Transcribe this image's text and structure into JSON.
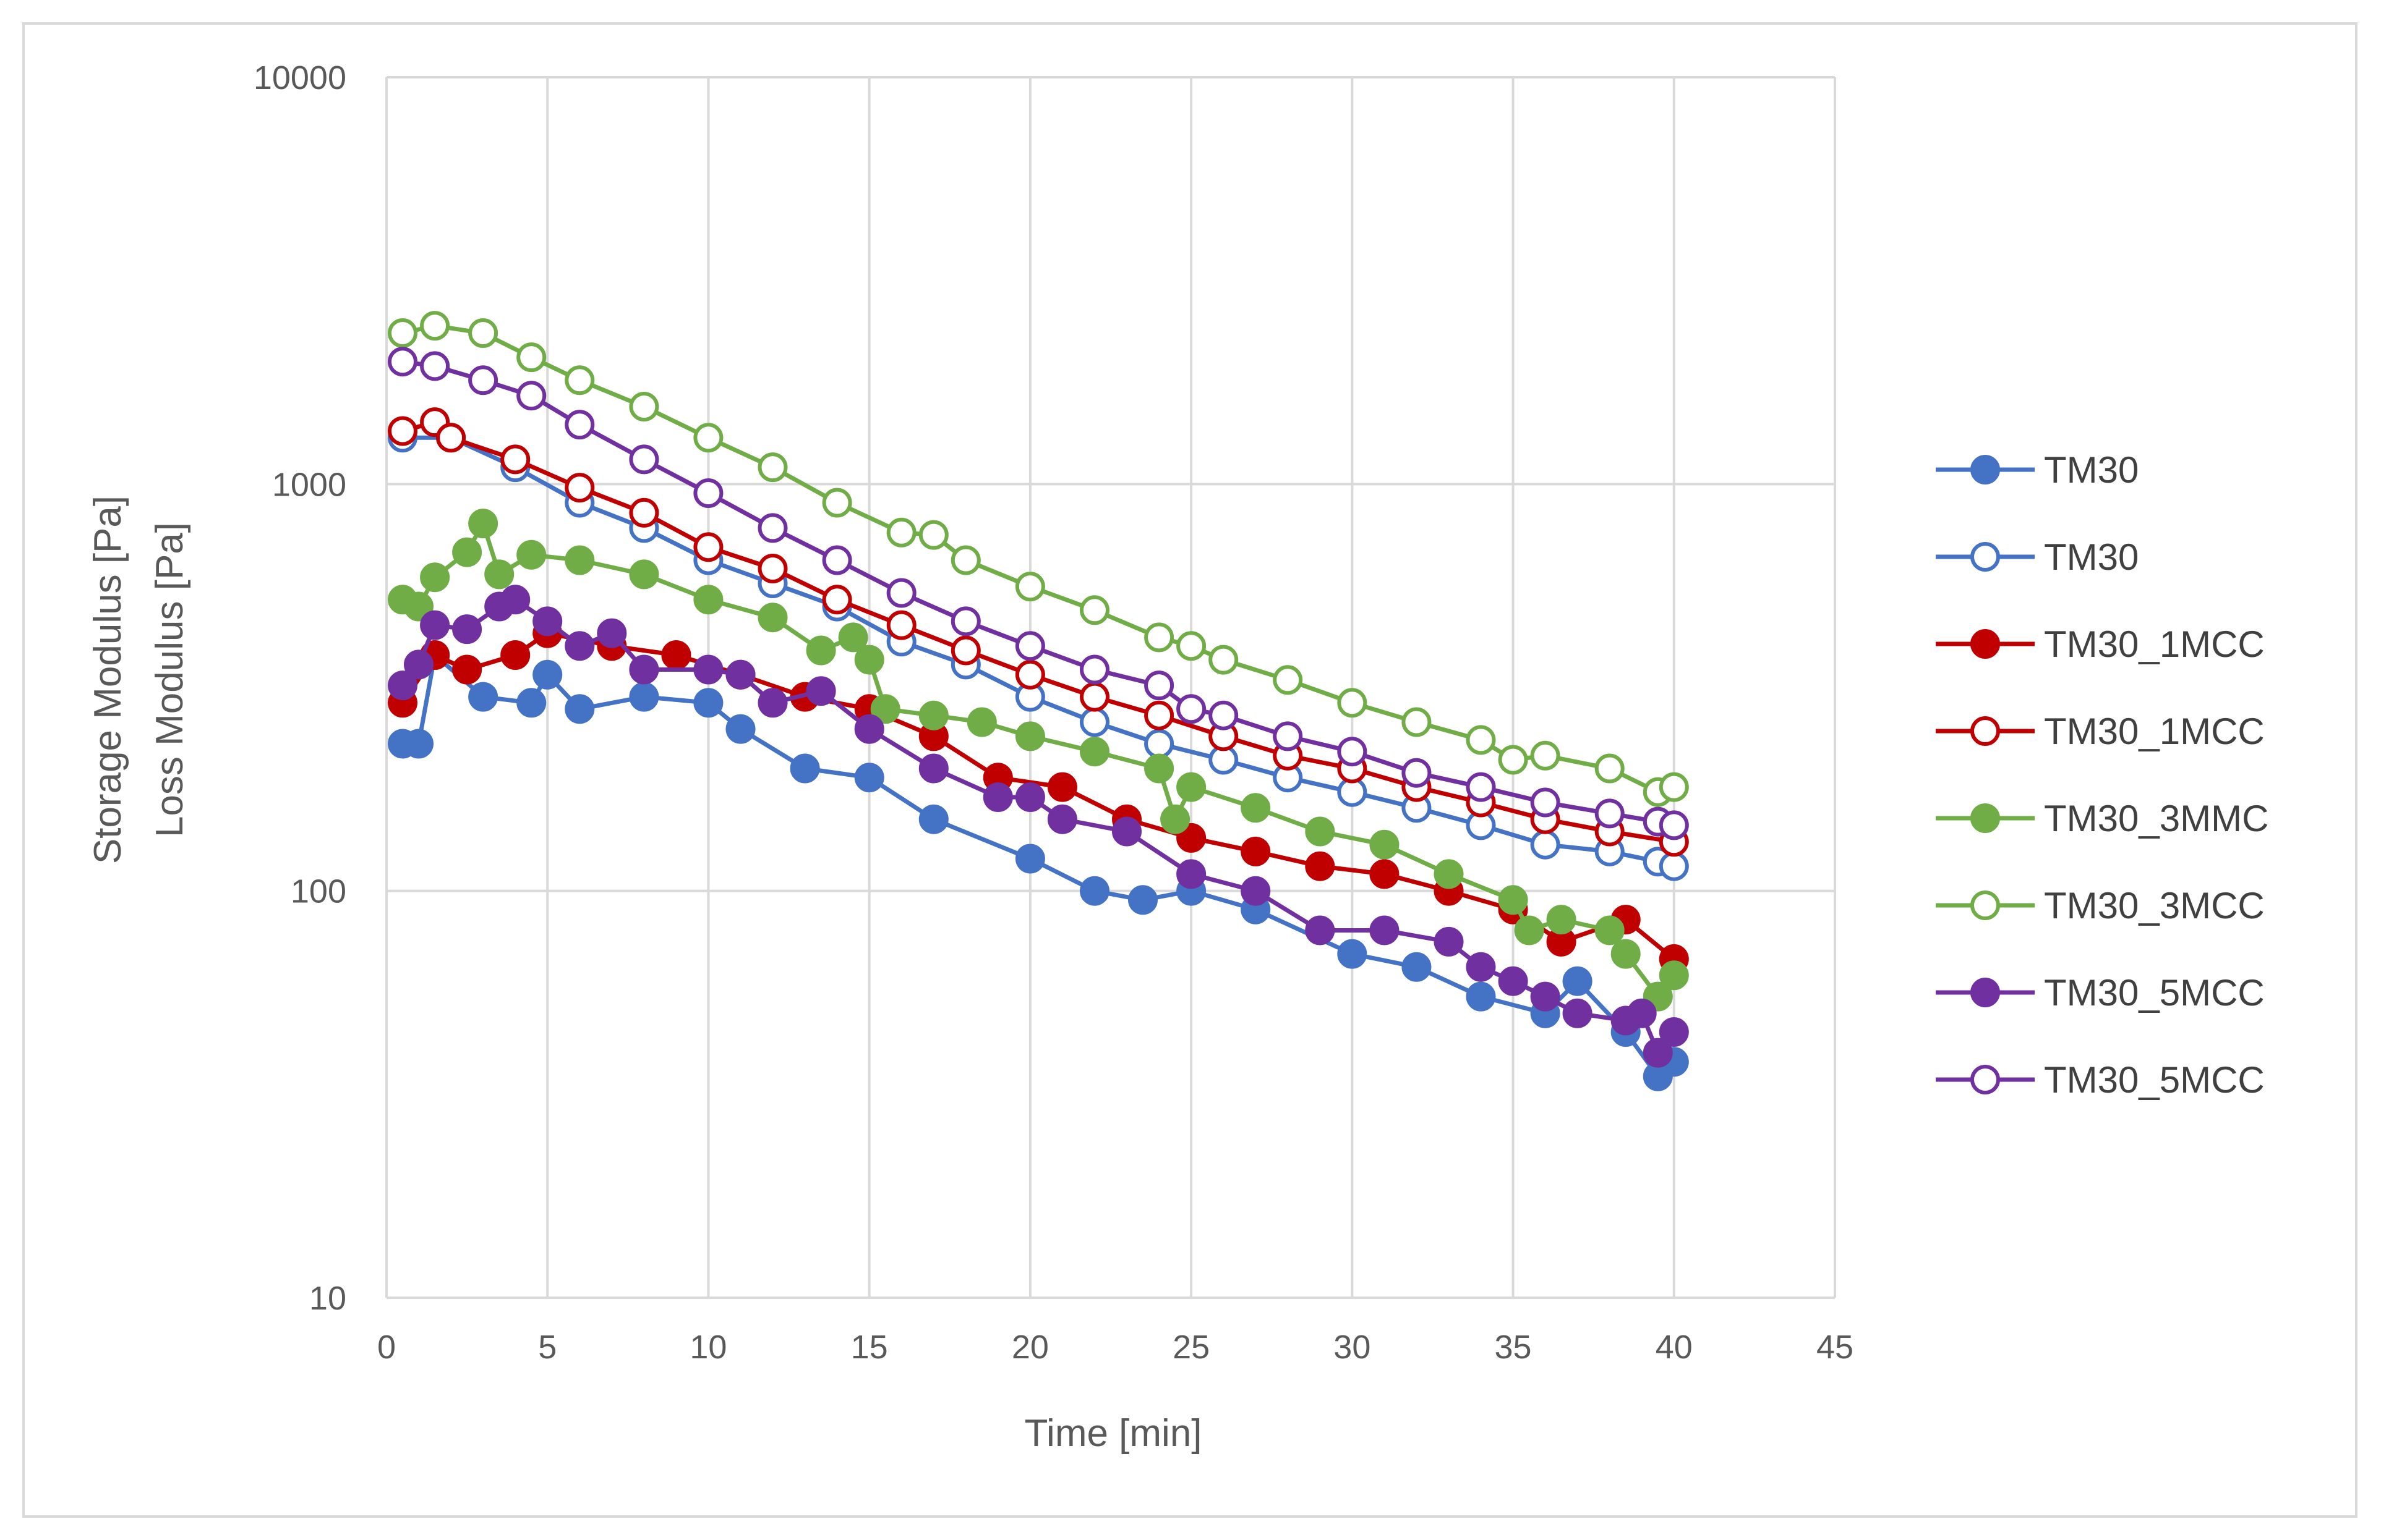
{
  "chart_data": {
    "type": "scatter",
    "title": "",
    "xlabel": "Time [min]",
    "ylabel": [
      "Storage Modulus [Pa]",
      "Loss Modulus [Pa]"
    ],
    "xlim": [
      0,
      45
    ],
    "ylim": [
      10,
      10000
    ],
    "yscale": "log",
    "grid": true,
    "legend_position": "right",
    "xticks": [
      "0",
      "5",
      "10",
      "15",
      "20",
      "25",
      "30",
      "35",
      "40",
      "45"
    ],
    "yticks": [
      "10",
      "100",
      "1000",
      "10000"
    ],
    "series": [
      {
        "name": "TM30",
        "filled": true,
        "color": "#4472c4",
        "points": [
          [
            0.5,
            230
          ],
          [
            1,
            230
          ],
          [
            1.5,
            380
          ],
          [
            3,
            300
          ],
          [
            4.5,
            290
          ],
          [
            5,
            340
          ],
          [
            6,
            280
          ],
          [
            8,
            300
          ],
          [
            10,
            290
          ],
          [
            11,
            250
          ],
          [
            13,
            200
          ],
          [
            15,
            190
          ],
          [
            17,
            150
          ],
          [
            20,
            120
          ],
          [
            22,
            100
          ],
          [
            23.5,
            95
          ],
          [
            25,
            100
          ],
          [
            27,
            90
          ],
          [
            30,
            70
          ],
          [
            32,
            65
          ],
          [
            34,
            55
          ],
          [
            36,
            50
          ],
          [
            37,
            60
          ],
          [
            38.5,
            45
          ],
          [
            39.5,
            35
          ],
          [
            40,
            38
          ]
        ]
      },
      {
        "name": "TM30",
        "filled": false,
        "color": "#4472c4",
        "points": [
          [
            0.5,
            1300
          ],
          [
            2,
            1300
          ],
          [
            4,
            1100
          ],
          [
            6,
            900
          ],
          [
            8,
            780
          ],
          [
            10,
            650
          ],
          [
            12,
            570
          ],
          [
            14,
            500
          ],
          [
            16,
            410
          ],
          [
            18,
            360
          ],
          [
            20,
            300
          ],
          [
            22,
            260
          ],
          [
            24,
            230
          ],
          [
            26,
            210
          ],
          [
            28,
            190
          ],
          [
            30,
            175
          ],
          [
            32,
            160
          ],
          [
            34,
            145
          ],
          [
            36,
            130
          ],
          [
            38,
            125
          ],
          [
            39.5,
            118
          ],
          [
            40,
            115
          ]
        ]
      },
      {
        "name": "TM30_1MCC",
        "filled": true,
        "color": "#c00000",
        "points": [
          [
            0.5,
            290
          ],
          [
            1.5,
            380
          ],
          [
            2.5,
            350
          ],
          [
            4,
            380
          ],
          [
            5,
            430
          ],
          [
            7,
            400
          ],
          [
            9,
            380
          ],
          [
            11,
            340
          ],
          [
            13,
            300
          ],
          [
            15,
            280
          ],
          [
            17,
            240
          ],
          [
            19,
            190
          ],
          [
            21,
            180
          ],
          [
            23,
            150
          ],
          [
            25,
            135
          ],
          [
            27,
            125
          ],
          [
            29,
            115
          ],
          [
            31,
            110
          ],
          [
            33,
            100
          ],
          [
            35,
            90
          ],
          [
            36.5,
            75
          ],
          [
            38.5,
            85
          ],
          [
            40,
            68
          ]
        ]
      },
      {
        "name": "TM30_1MCC",
        "filled": false,
        "color": "#c00000",
        "points": [
          [
            0.5,
            1350
          ],
          [
            1.5,
            1420
          ],
          [
            2,
            1300
          ],
          [
            4,
            1150
          ],
          [
            6,
            980
          ],
          [
            8,
            850
          ],
          [
            10,
            700
          ],
          [
            12,
            620
          ],
          [
            14,
            520
          ],
          [
            16,
            450
          ],
          [
            18,
            390
          ],
          [
            20,
            340
          ],
          [
            22,
            300
          ],
          [
            24,
            270
          ],
          [
            26,
            240
          ],
          [
            28,
            215
          ],
          [
            30,
            200
          ],
          [
            32,
            180
          ],
          [
            34,
            165
          ],
          [
            36,
            150
          ],
          [
            38,
            140
          ],
          [
            40,
            132
          ]
        ]
      },
      {
        "name": "TM30_3MMC",
        "filled": true,
        "color": "#70ad47",
        "points": [
          [
            0.5,
            520
          ],
          [
            1,
            500
          ],
          [
            1.5,
            590
          ],
          [
            2.5,
            680
          ],
          [
            3,
            800
          ],
          [
            3.5,
            600
          ],
          [
            4.5,
            670
          ],
          [
            6,
            650
          ],
          [
            8,
            600
          ],
          [
            10,
            520
          ],
          [
            12,
            470
          ],
          [
            13.5,
            390
          ],
          [
            14.5,
            420
          ],
          [
            15,
            370
          ],
          [
            15.5,
            280
          ],
          [
            17,
            270
          ],
          [
            18.5,
            260
          ],
          [
            20,
            240
          ],
          [
            22,
            220
          ],
          [
            24,
            200
          ],
          [
            24.5,
            150
          ],
          [
            25,
            180
          ],
          [
            27,
            160
          ],
          [
            29,
            140
          ],
          [
            31,
            130
          ],
          [
            33,
            110
          ],
          [
            35,
            95
          ],
          [
            35.5,
            80
          ],
          [
            36.5,
            85
          ],
          [
            38,
            80
          ],
          [
            38.5,
            70
          ],
          [
            39.5,
            55
          ],
          [
            40,
            62
          ]
        ]
      },
      {
        "name": "TM30_3MCC",
        "filled": false,
        "color": "#70ad47",
        "points": [
          [
            0.5,
            2350
          ],
          [
            1.5,
            2450
          ],
          [
            3,
            2350
          ],
          [
            4.5,
            2050
          ],
          [
            6,
            1800
          ],
          [
            8,
            1550
          ],
          [
            10,
            1300
          ],
          [
            12,
            1100
          ],
          [
            14,
            900
          ],
          [
            16,
            760
          ],
          [
            17,
            750
          ],
          [
            18,
            650
          ],
          [
            20,
            560
          ],
          [
            22,
            490
          ],
          [
            24,
            420
          ],
          [
            25,
            400
          ],
          [
            26,
            370
          ],
          [
            28,
            330
          ],
          [
            30,
            290
          ],
          [
            32,
            260
          ],
          [
            34,
            235
          ],
          [
            35,
            210
          ],
          [
            36,
            215
          ],
          [
            38,
            200
          ],
          [
            39.5,
            175
          ],
          [
            40,
            180
          ]
        ]
      },
      {
        "name": "TM30_5MCC",
        "filled": true,
        "color": "#7030a0",
        "points": [
          [
            0.5,
            320
          ],
          [
            1,
            360
          ],
          [
            1.5,
            450
          ],
          [
            2.5,
            440
          ],
          [
            3.5,
            500
          ],
          [
            4,
            520
          ],
          [
            5,
            460
          ],
          [
            6,
            400
          ],
          [
            7,
            430
          ],
          [
            8,
            350
          ],
          [
            10,
            350
          ],
          [
            11,
            340
          ],
          [
            12,
            290
          ],
          [
            13.5,
            310
          ],
          [
            15,
            250
          ],
          [
            17,
            200
          ],
          [
            19,
            170
          ],
          [
            20,
            170
          ],
          [
            21,
            150
          ],
          [
            23,
            140
          ],
          [
            25,
            110
          ],
          [
            27,
            100
          ],
          [
            29,
            80
          ],
          [
            31,
            80
          ],
          [
            33,
            75
          ],
          [
            34,
            65
          ],
          [
            35,
            60
          ],
          [
            36,
            55
          ],
          [
            37,
            50
          ],
          [
            38.5,
            48
          ],
          [
            39,
            50
          ],
          [
            39.5,
            40
          ],
          [
            40,
            45
          ]
        ]
      },
      {
        "name": "TM30_5MCC",
        "filled": false,
        "color": "#7030a0",
        "points": [
          [
            0.5,
            2000
          ],
          [
            1.5,
            1950
          ],
          [
            3,
            1800
          ],
          [
            4.5,
            1650
          ],
          [
            6,
            1400
          ],
          [
            8,
            1150
          ],
          [
            10,
            950
          ],
          [
            12,
            780
          ],
          [
            14,
            650
          ],
          [
            16,
            540
          ],
          [
            18,
            460
          ],
          [
            20,
            400
          ],
          [
            22,
            350
          ],
          [
            24,
            320
          ],
          [
            25,
            280
          ],
          [
            26,
            270
          ],
          [
            28,
            240
          ],
          [
            30,
            220
          ],
          [
            32,
            195
          ],
          [
            34,
            180
          ],
          [
            36,
            165
          ],
          [
            38,
            155
          ],
          [
            39.5,
            148
          ],
          [
            40,
            145
          ]
        ]
      }
    ]
  }
}
